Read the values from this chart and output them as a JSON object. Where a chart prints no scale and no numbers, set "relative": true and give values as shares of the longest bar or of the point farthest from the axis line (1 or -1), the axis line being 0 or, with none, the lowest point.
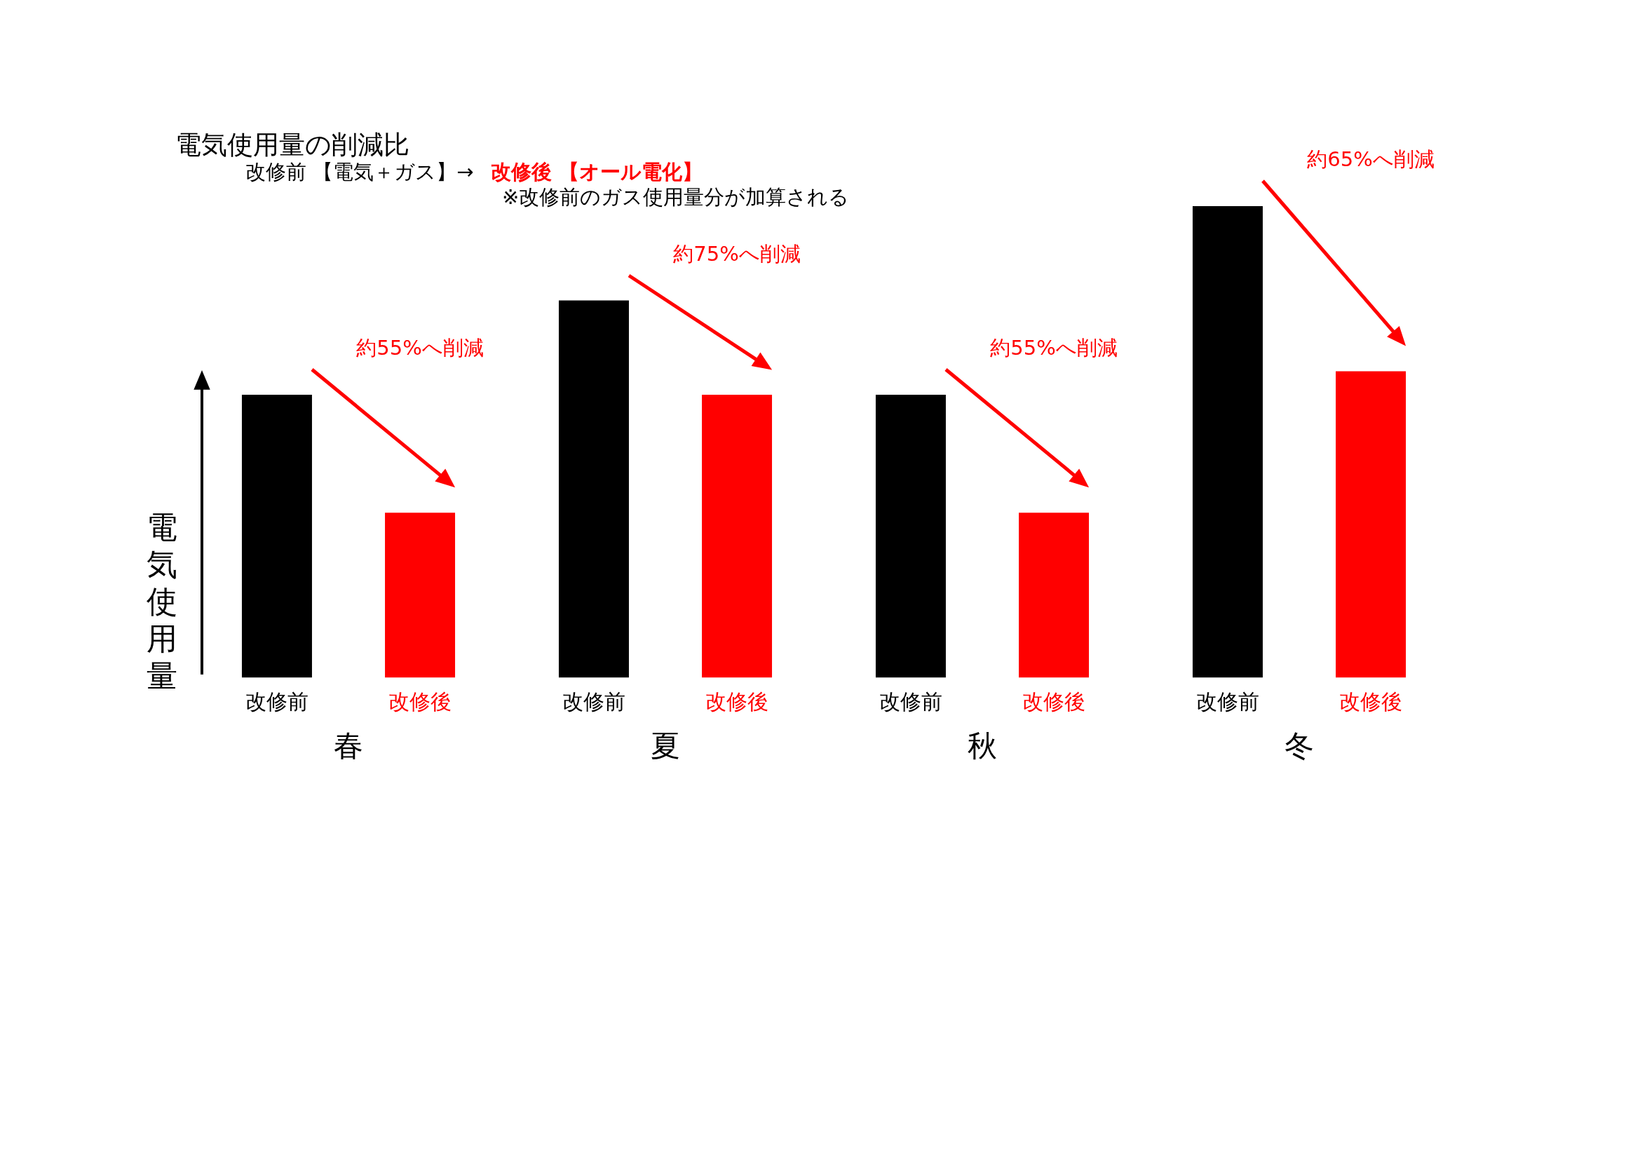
{
  "chart_data": {
    "type": "bar",
    "title": "電気使用量の削減比",
    "subtitle": "改修前 【電気＋ガス】→",
    "ylabel": "電気使用量",
    "relative": true,
    "legend": false,
    "grid": false,
    "categories": [
      "春",
      "夏",
      "秋",
      "冬"
    ],
    "series": [
      {
        "name": "改修前",
        "color": "#000000",
        "values": [
          0.6,
          0.8,
          0.6,
          1
        ]
      },
      {
        "name": "改修後",
        "color": "#ff0000",
        "values": [
          0.35,
          0.6,
          0.35,
          0.65
        ]
      }
    ],
    "annotations": [
      "約55%へ削減",
      "約75%へ削減",
      "約55%へ削減",
      "約65%へ削減",
      "改修後 【オール電化】",
      "※改修前のガス使用量分が加算される"
    ]
  }
}
